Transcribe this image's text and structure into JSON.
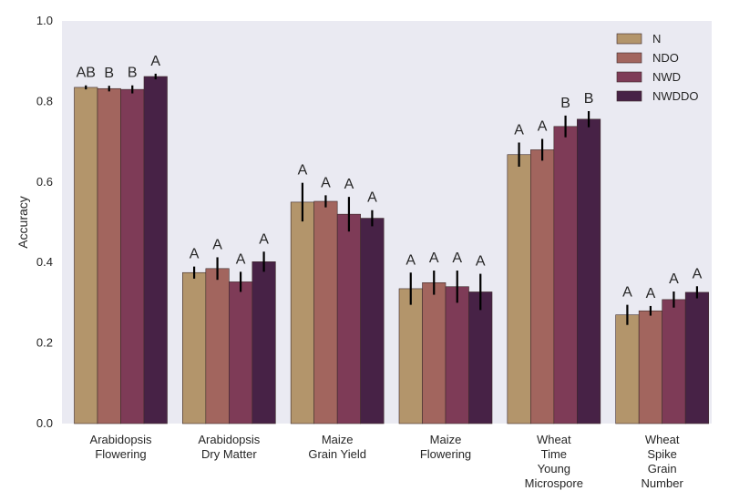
{
  "chart_data": {
    "type": "bar",
    "title": "",
    "xlabel": "",
    "ylabel": "Accuracy",
    "ylim": [
      0.0,
      1.0
    ],
    "yticks": [
      "0.0",
      "0.2",
      "0.4",
      "0.6",
      "0.8",
      "1.0"
    ],
    "grid": false,
    "legend_position": "top-right",
    "categories": [
      [
        "Arabidopsis",
        "Flowering"
      ],
      [
        "Arabidopsis",
        "Dry Matter"
      ],
      [
        "Maize",
        "Grain Yield"
      ],
      [
        "Maize",
        "Flowering"
      ],
      [
        "Wheat",
        "Time",
        "Young",
        "Microspore"
      ],
      [
        "Wheat",
        "Spike",
        "Grain",
        "Number"
      ]
    ],
    "series": [
      {
        "name": "N",
        "color": "#b3956b",
        "values": [
          0.835,
          0.375,
          0.55,
          0.335,
          0.668,
          0.27
        ],
        "errors": [
          0.005,
          0.015,
          0.048,
          0.04,
          0.03,
          0.025
        ],
        "letters": [
          "AB",
          "A",
          "A",
          "A",
          "A",
          "A"
        ]
      },
      {
        "name": "NDO",
        "color": "#a2655e",
        "values": [
          0.832,
          0.385,
          0.552,
          0.35,
          0.68,
          0.28
        ],
        "errors": [
          0.007,
          0.028,
          0.015,
          0.03,
          0.027,
          0.012
        ],
        "letters": [
          "B",
          "A",
          "A",
          "A",
          "A",
          "A"
        ]
      },
      {
        "name": "NWD",
        "color": "#7e3b57",
        "values": [
          0.83,
          0.352,
          0.52,
          0.34,
          0.738,
          0.308
        ],
        "errors": [
          0.01,
          0.025,
          0.043,
          0.04,
          0.027,
          0.02
        ],
        "letters": [
          "B",
          "A",
          "A",
          "A",
          "B",
          "A"
        ]
      },
      {
        "name": "NWDDO",
        "color": "#472246",
        "values": [
          0.862,
          0.402,
          0.51,
          0.327,
          0.756,
          0.326
        ],
        "errors": [
          0.007,
          0.025,
          0.02,
          0.045,
          0.02,
          0.015
        ],
        "letters": [
          "A",
          "A",
          "A",
          "A",
          "B",
          "A"
        ]
      }
    ]
  }
}
